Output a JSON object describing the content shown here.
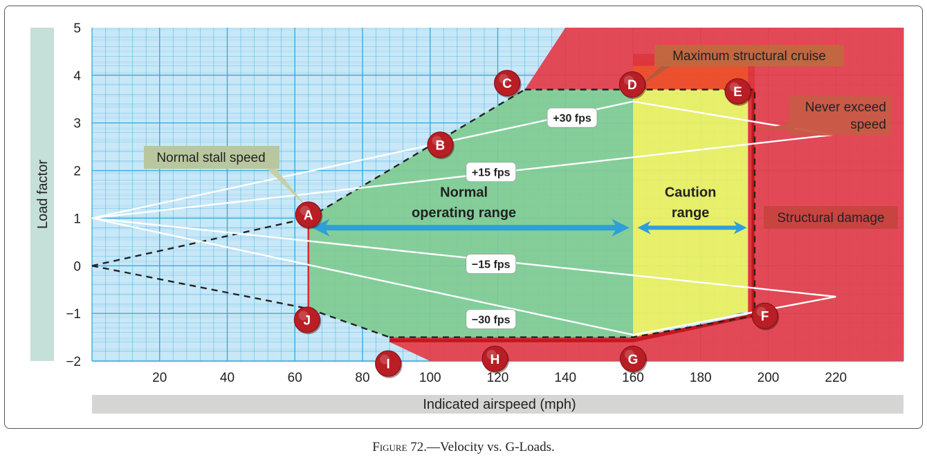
{
  "chart_data": {
    "type": "line",
    "title": "Velocity vs. G-Loads",
    "xlabel": "Indicated airspeed (mph)",
    "ylabel": "Load factor",
    "xlim": [
      0,
      240
    ],
    "ylim": [
      -2,
      5
    ],
    "xticks": [
      20,
      40,
      60,
      80,
      100,
      120,
      140,
      160,
      180,
      200,
      220
    ],
    "yticks": [
      5,
      4,
      3,
      2,
      1,
      0,
      -1,
      -2
    ],
    "ytick_labels": [
      "5",
      "4",
      "3",
      "2",
      "1",
      "0",
      "−1",
      "−2"
    ],
    "points": [
      {
        "label": "A",
        "x": 64,
        "y": 1.0
      },
      {
        "label": "B",
        "x": 103,
        "y": 2.6
      },
      {
        "label": "C",
        "x": 124,
        "y": 3.75
      },
      {
        "label": "D",
        "x": 161,
        "y": 3.75
      },
      {
        "label": "E",
        "x": 191,
        "y": 3.75
      },
      {
        "label": "F",
        "x": 199,
        "y": -1.05
      },
      {
        "label": "G",
        "x": 160,
        "y": -1.75
      },
      {
        "label": "H",
        "x": 120,
        "y": -1.75
      },
      {
        "label": "I",
        "x": 88,
        "y": -1.85
      },
      {
        "label": "J",
        "x": 64,
        "y": -1.25
      }
    ],
    "series": [
      {
        "name": "Positive stall limit",
        "style": "dashed",
        "x": [
          0,
          64,
          128
        ],
        "y": [
          0,
          1.0,
          3.7
        ]
      },
      {
        "name": "Negative stall limit",
        "style": "dashed",
        "x": [
          0,
          64,
          88
        ],
        "y": [
          0,
          -0.9,
          -1.5
        ]
      },
      {
        "name": "Limit envelope",
        "style": "dashed",
        "x": [
          128,
          196,
          196,
          160,
          88
        ],
        "y": [
          3.7,
          3.7,
          -1.05,
          -1.5,
          -1.5
        ]
      },
      {
        "name": "+30 fps",
        "style": "gust",
        "x": [
          0,
          160,
          219
        ],
        "y": [
          1,
          3.45,
          2.75
        ]
      },
      {
        "name": "+15 fps",
        "style": "gust",
        "x": [
          0,
          219
        ],
        "y": [
          1,
          2.75
        ]
      },
      {
        "name": "−15 fps",
        "style": "gust",
        "x": [
          0,
          220
        ],
        "y": [
          1,
          -0.65
        ]
      },
      {
        "name": "−30 fps",
        "style": "gust",
        "x": [
          0,
          160,
          220
        ],
        "y": [
          1,
          -1.45,
          -0.65
        ]
      }
    ],
    "regions": [
      {
        "name": "Normal operating range",
        "x_from": 64,
        "x_to": 160,
        "color": "#7fcb91"
      },
      {
        "name": "Caution range",
        "x_from": 160,
        "x_to": 194,
        "color": "#e9ef63"
      },
      {
        "name": "Structural damage",
        "color": "#e43c49"
      }
    ],
    "gust_labels": [
      "+30 fps",
      "+15 fps",
      "−15 fps",
      "−30 fps"
    ],
    "annotations": {
      "normal_stall_speed": "Normal stall speed",
      "max_structural_cruise": "Maximum structural cruise",
      "never_exceed_line1": "Never exceed",
      "never_exceed_line2": "speed",
      "structural_damage": "Structural damage",
      "normal_range_line1": "Normal",
      "normal_range_line2": "operating range",
      "caution_line1": "Caution",
      "caution_line2": "range"
    },
    "colors": {
      "grid_bg": "#c8e8f8",
      "grid_line": "#2aa5dd",
      "normal": "#7fcb91",
      "caution": "#e9ef63",
      "danger": "#e43c49",
      "envelope_edge": "#d8282e",
      "marker": "#b81e24",
      "arrow": "#2f9fda",
      "axis_band": "#c5dfd9",
      "xlabel_band": "#d5d5d3"
    }
  },
  "caption": {
    "figure": "Figure 72.",
    "text": "—Velocity vs. G-Loads."
  }
}
